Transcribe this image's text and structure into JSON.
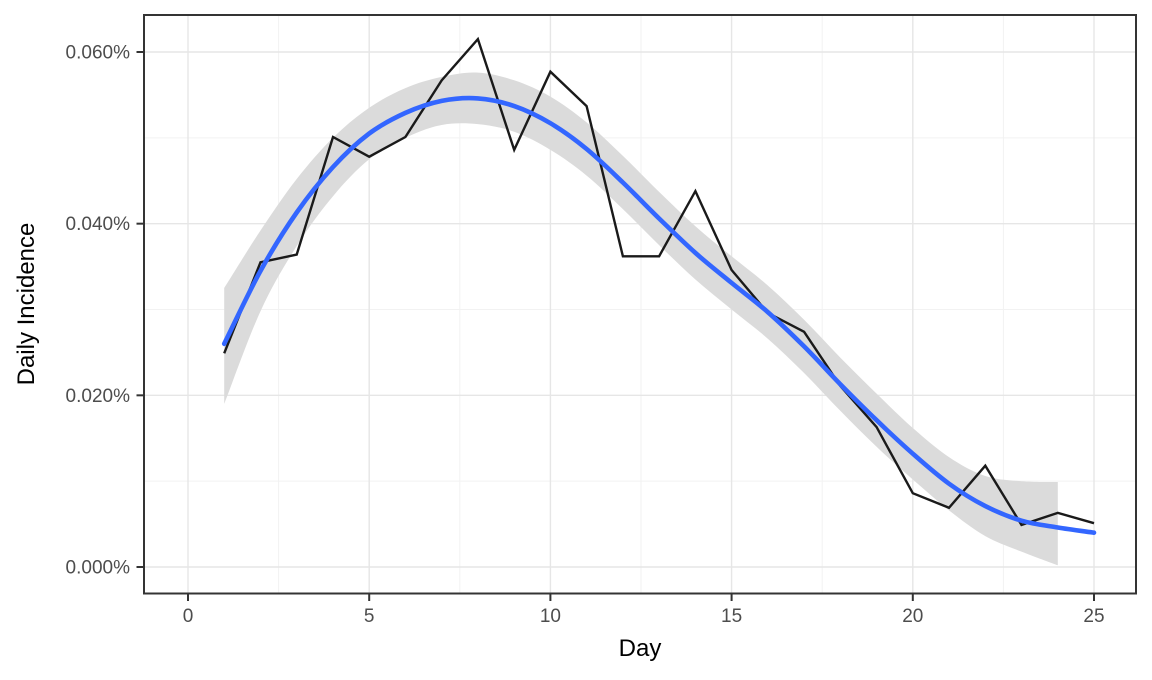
{
  "figure": {
    "background": "#ffffff",
    "panel_border_color": "#343434",
    "grid_major_color": "#e6e6e6",
    "grid_minor_color": "#f2f2f2",
    "tick_mark_color": "#333333",
    "tick_label_color": "#4d4d4d",
    "axis_title_color": "#000000"
  },
  "chart_data": {
    "type": "line",
    "title": "",
    "xlabel": "Day",
    "ylabel": "Daily Incidence",
    "y_unit": "percent",
    "xlim": [
      -1.2,
      26.2
    ],
    "ylim": [
      -0.0031,
      0.0644
    ],
    "x_ticks": [
      "0",
      "5",
      "10",
      "15",
      "20",
      "25"
    ],
    "x_tick_values": [
      0,
      5,
      10,
      15,
      20,
      25
    ],
    "x_minor_tick_values": [
      2.5,
      7.5,
      12.5,
      17.5,
      22.5
    ],
    "y_ticks": [
      "0.000%",
      "0.020%",
      "0.040%",
      "0.060%"
    ],
    "y_tick_values": [
      0.0,
      0.02,
      0.04,
      0.06
    ],
    "y_minor_tick_values": [
      0.01,
      0.03,
      0.05
    ],
    "grid": true,
    "legend": "none",
    "x": [
      1,
      2,
      3,
      4,
      5,
      6,
      7,
      8,
      9,
      10,
      11,
      12,
      13,
      14,
      15,
      16,
      17,
      18,
      19,
      20,
      21,
      22,
      23,
      24,
      25
    ],
    "series": [
      {
        "name": "observed",
        "kind": "polyline",
        "color": "#1a1a1a",
        "width": 2.4,
        "values": [
          0.0249,
          0.0355,
          0.0364,
          0.0501,
          0.0478,
          0.0501,
          0.0567,
          0.0615,
          0.0486,
          0.0577,
          0.0537,
          0.0362,
          0.0362,
          0.0438,
          0.0346,
          0.0296,
          0.0274,
          0.0211,
          0.0163,
          0.0086,
          0.0069,
          0.0118,
          0.0049,
          0.0063,
          0.0051
        ]
      },
      {
        "name": "loess_smooth",
        "kind": "smooth",
        "color": "#3366FF",
        "width": 4.6,
        "values": [
          0.026,
          0.0345,
          0.0413,
          0.0466,
          0.0505,
          0.0529,
          0.0543,
          0.0546,
          0.0537,
          0.0517,
          0.0487,
          0.0448,
          0.0406,
          0.0366,
          0.0331,
          0.0297,
          0.0257,
          0.0213,
          0.0171,
          0.0132,
          0.0097,
          0.0071,
          0.0054,
          0.0046,
          0.004
        ]
      },
      {
        "name": "confidence_band",
        "kind": "ribbon",
        "color": "#dbdbdb",
        "x": [
          1,
          2,
          3,
          4,
          5,
          6,
          7,
          8,
          9,
          10,
          11,
          12,
          13,
          14,
          15,
          16,
          17,
          18,
          19,
          20,
          21,
          22,
          23,
          24
        ],
        "upper": [
          0.0325,
          0.0392,
          0.0452,
          0.05,
          0.0535,
          0.0558,
          0.0571,
          0.0576,
          0.0567,
          0.0548,
          0.0518,
          0.0479,
          0.0437,
          0.0397,
          0.0362,
          0.0328,
          0.0288,
          0.0244,
          0.0202,
          0.0162,
          0.0128,
          0.0106,
          0.01,
          0.0099
        ],
        "lower": [
          0.019,
          0.0298,
          0.0374,
          0.0432,
          0.0475,
          0.05,
          0.0515,
          0.0516,
          0.0507,
          0.0486,
          0.0456,
          0.0417,
          0.0375,
          0.0335,
          0.03,
          0.0266,
          0.0226,
          0.0182,
          0.014,
          0.0102,
          0.0066,
          0.0036,
          0.0018,
          0.0002
        ]
      }
    ]
  }
}
